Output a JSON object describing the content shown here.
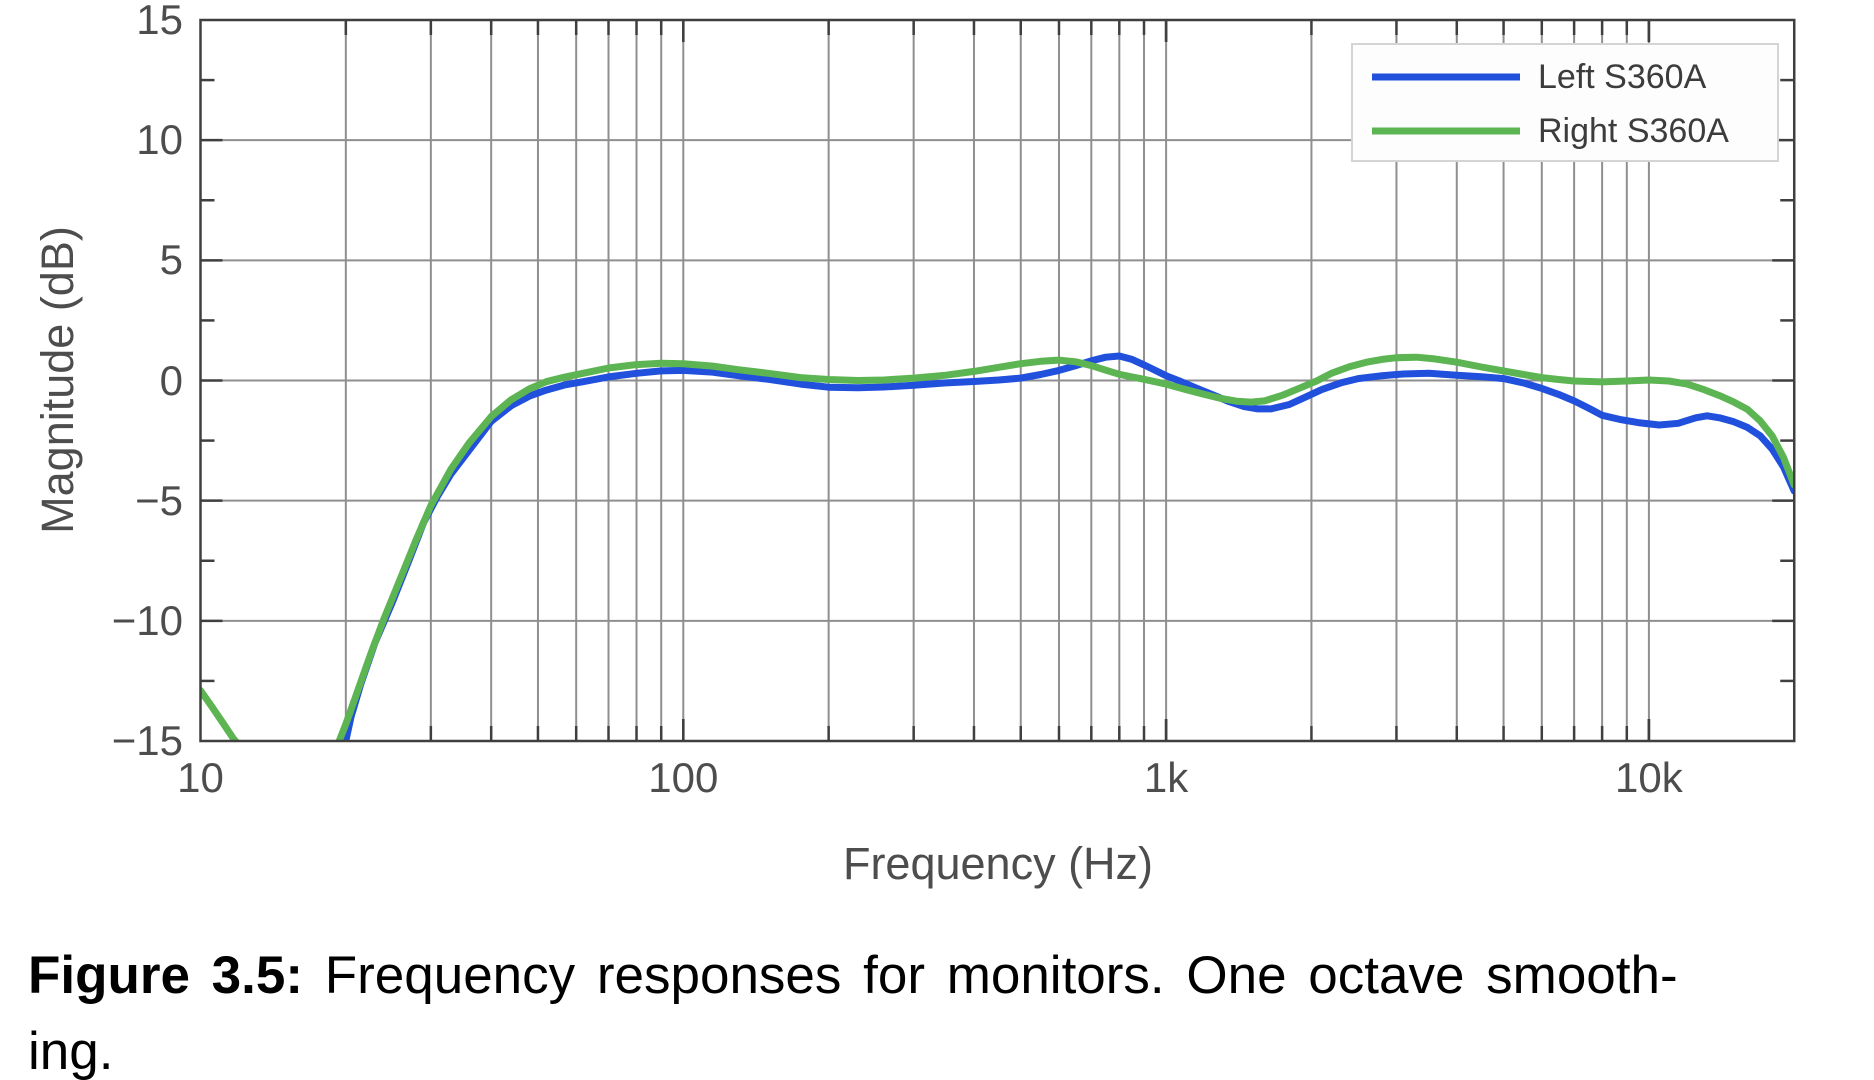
{
  "figure": {
    "label": "Figure 3.5:",
    "caption_line1": "Frequency responses for monitors.  One octave smooth-",
    "caption_line2": "ing."
  },
  "colors": {
    "axis_border": "#3f3f3f",
    "grid": "#8f8f8f",
    "tick_text": "#4d4d4d",
    "legend_border": "#d4d4d4",
    "legend_fill": "#fdfdfd",
    "left_series": "#2050dc",
    "right_series": "#5cb552"
  },
  "chart_data": {
    "type": "line",
    "title": "",
    "xlabel": "Frequency (Hz)",
    "ylabel": "Magnitude (dB)",
    "x_scale": "log",
    "xlim": [
      10,
      20000
    ],
    "ylim": [
      -15,
      15
    ],
    "grid": true,
    "minor_grid_x": true,
    "x_ticks": [
      {
        "value": 10,
        "label": "10"
      },
      {
        "value": 100,
        "label": "100"
      },
      {
        "value": 1000,
        "label": "1k"
      },
      {
        "value": 10000,
        "label": "10k"
      }
    ],
    "y_ticks": [
      {
        "value": 15,
        "label": "15"
      },
      {
        "value": 10,
        "label": "10"
      },
      {
        "value": 5,
        "label": "5"
      },
      {
        "value": 0,
        "label": "0"
      },
      {
        "value": -5,
        "label": "−5"
      },
      {
        "value": -10,
        "label": "−10"
      },
      {
        "value": -15,
        "label": "−15"
      }
    ],
    "y_minor_ticks": [
      12.5,
      7.5,
      2.5,
      -2.5,
      -7.5,
      -12.5
    ],
    "legend": {
      "position": "top-right",
      "entries": [
        {
          "label": "Left S360A",
          "color": "#2050dc"
        },
        {
          "label": "Right S360A",
          "color": "#5cb552"
        }
      ]
    },
    "series": [
      {
        "name": "Left S360A",
        "color": "#2050dc",
        "points": [
          [
            19.8,
            -15.4
          ],
          [
            20.5,
            -14
          ],
          [
            21.5,
            -12.6
          ],
          [
            23,
            -10.9
          ],
          [
            25,
            -9.2
          ],
          [
            27,
            -7.5
          ],
          [
            29,
            -5.9
          ],
          [
            31,
            -4.8
          ],
          [
            33,
            -3.9
          ],
          [
            36,
            -2.9
          ],
          [
            40,
            -1.7
          ],
          [
            44,
            -1.05
          ],
          [
            48,
            -0.65
          ],
          [
            52,
            -0.4
          ],
          [
            57,
            -0.18
          ],
          [
            62,
            -0.05
          ],
          [
            70,
            0.15
          ],
          [
            80,
            0.3
          ],
          [
            90,
            0.4
          ],
          [
            100,
            0.42
          ],
          [
            115,
            0.35
          ],
          [
            130,
            0.2
          ],
          [
            150,
            0.05
          ],
          [
            175,
            -0.15
          ],
          [
            200,
            -0.28
          ],
          [
            230,
            -0.3
          ],
          [
            260,
            -0.27
          ],
          [
            300,
            -0.2
          ],
          [
            350,
            -0.1
          ],
          [
            400,
            -0.04
          ],
          [
            450,
            0.02
          ],
          [
            500,
            0.1
          ],
          [
            550,
            0.25
          ],
          [
            600,
            0.42
          ],
          [
            650,
            0.62
          ],
          [
            700,
            0.82
          ],
          [
            750,
            0.97
          ],
          [
            800,
            1.02
          ],
          [
            850,
            0.88
          ],
          [
            900,
            0.65
          ],
          [
            950,
            0.42
          ],
          [
            1000,
            0.2
          ],
          [
            1060,
            0.0
          ],
          [
            1150,
            -0.3
          ],
          [
            1250,
            -0.6
          ],
          [
            1350,
            -0.88
          ],
          [
            1450,
            -1.08
          ],
          [
            1550,
            -1.18
          ],
          [
            1650,
            -1.18
          ],
          [
            1800,
            -1.0
          ],
          [
            1950,
            -0.68
          ],
          [
            2100,
            -0.38
          ],
          [
            2300,
            -0.1
          ],
          [
            2500,
            0.08
          ],
          [
            2800,
            0.2
          ],
          [
            3100,
            0.27
          ],
          [
            3500,
            0.3
          ],
          [
            4000,
            0.22
          ],
          [
            4500,
            0.16
          ],
          [
            5000,
            0.08
          ],
          [
            5500,
            -0.1
          ],
          [
            6000,
            -0.33
          ],
          [
            6500,
            -0.58
          ],
          [
            7000,
            -0.85
          ],
          [
            7500,
            -1.15
          ],
          [
            8000,
            -1.45
          ],
          [
            8700,
            -1.62
          ],
          [
            9500,
            -1.75
          ],
          [
            10500,
            -1.85
          ],
          [
            11500,
            -1.78
          ],
          [
            12500,
            -1.55
          ],
          [
            13200,
            -1.47
          ],
          [
            14000,
            -1.55
          ],
          [
            15000,
            -1.72
          ],
          [
            16000,
            -1.95
          ],
          [
            17000,
            -2.3
          ],
          [
            18000,
            -2.85
          ],
          [
            19000,
            -3.6
          ],
          [
            20000,
            -4.6
          ]
        ]
      },
      {
        "name": "Right S360A",
        "color": "#5cb552",
        "points": [
          [
            10,
            -12.9
          ],
          [
            10.5,
            -13.5
          ],
          [
            11,
            -14.1
          ],
          [
            11.7,
            -14.9
          ],
          [
            12.5,
            -15.6
          ],
          [
            14,
            -16.8
          ],
          [
            16,
            -17.3
          ],
          [
            18,
            -16.2
          ],
          [
            19.2,
            -15.2
          ],
          [
            20,
            -14.3
          ],
          [
            21,
            -13.1
          ],
          [
            22.5,
            -11.4
          ],
          [
            24,
            -9.9
          ],
          [
            26,
            -8.2
          ],
          [
            28,
            -6.6
          ],
          [
            30,
            -5.2
          ],
          [
            33,
            -3.7
          ],
          [
            36,
            -2.6
          ],
          [
            40,
            -1.5
          ],
          [
            44,
            -0.8
          ],
          [
            48,
            -0.35
          ],
          [
            52,
            -0.05
          ],
          [
            57,
            0.15
          ],
          [
            62,
            0.3
          ],
          [
            70,
            0.52
          ],
          [
            80,
            0.66
          ],
          [
            90,
            0.72
          ],
          [
            100,
            0.7
          ],
          [
            115,
            0.6
          ],
          [
            130,
            0.45
          ],
          [
            150,
            0.3
          ],
          [
            175,
            0.12
          ],
          [
            200,
            0.04
          ],
          [
            230,
            0.0
          ],
          [
            260,
            0.02
          ],
          [
            300,
            0.1
          ],
          [
            350,
            0.22
          ],
          [
            400,
            0.38
          ],
          [
            450,
            0.55
          ],
          [
            500,
            0.7
          ],
          [
            550,
            0.8
          ],
          [
            600,
            0.85
          ],
          [
            650,
            0.78
          ],
          [
            700,
            0.62
          ],
          [
            750,
            0.43
          ],
          [
            800,
            0.26
          ],
          [
            850,
            0.15
          ],
          [
            900,
            0.05
          ],
          [
            1000,
            -0.15
          ],
          [
            1100,
            -0.38
          ],
          [
            1200,
            -0.58
          ],
          [
            1300,
            -0.75
          ],
          [
            1400,
            -0.86
          ],
          [
            1500,
            -0.9
          ],
          [
            1600,
            -0.85
          ],
          [
            1750,
            -0.6
          ],
          [
            1900,
            -0.3
          ],
          [
            2050,
            -0.02
          ],
          [
            2200,
            0.3
          ],
          [
            2400,
            0.58
          ],
          [
            2600,
            0.76
          ],
          [
            2800,
            0.88
          ],
          [
            3000,
            0.95
          ],
          [
            3300,
            0.97
          ],
          [
            3600,
            0.9
          ],
          [
            4000,
            0.76
          ],
          [
            4500,
            0.56
          ],
          [
            5000,
            0.4
          ],
          [
            5500,
            0.25
          ],
          [
            6000,
            0.12
          ],
          [
            6500,
            0.04
          ],
          [
            7000,
            -0.02
          ],
          [
            8000,
            -0.06
          ],
          [
            9000,
            -0.02
          ],
          [
            10000,
            0.02
          ],
          [
            11000,
            -0.02
          ],
          [
            12000,
            -0.15
          ],
          [
            13000,
            -0.38
          ],
          [
            14000,
            -0.63
          ],
          [
            15000,
            -0.9
          ],
          [
            16000,
            -1.2
          ],
          [
            17000,
            -1.68
          ],
          [
            18000,
            -2.3
          ],
          [
            19000,
            -3.2
          ],
          [
            20000,
            -4.35
          ]
        ]
      }
    ]
  }
}
